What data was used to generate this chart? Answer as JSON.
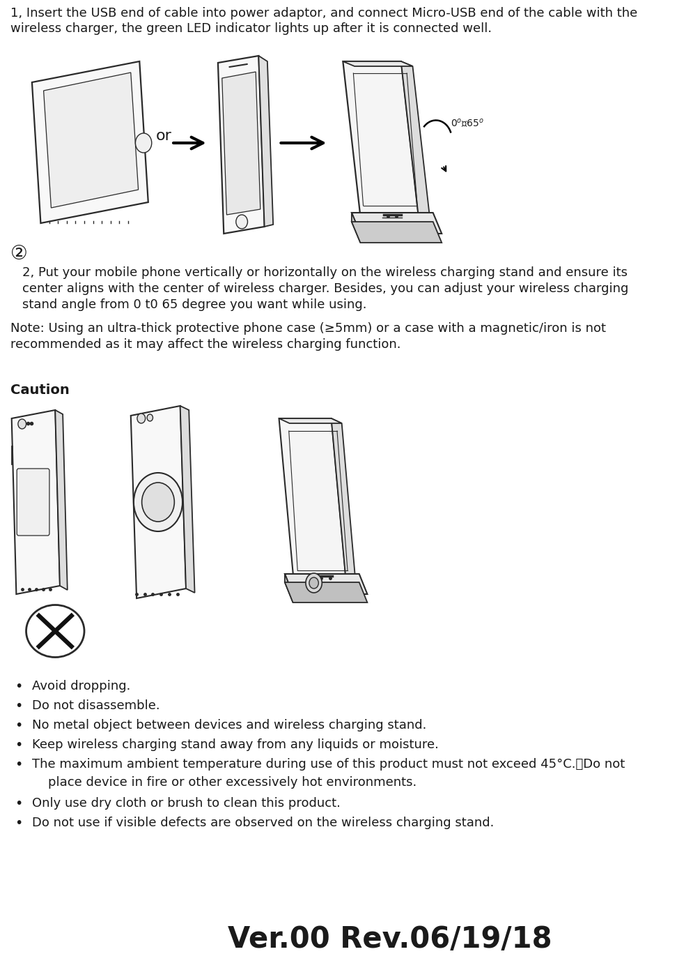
{
  "bg_color": "#ffffff",
  "text_color": "#1a1a1a",
  "title_version": "Ver.00 Rev.06/19/18",
  "para1_line1": "1, Insert the USB end of cable into power adaptor, and connect Micro-USB end of the cable with the",
  "para1_line2": "wireless charger, the green LED indicator lights up after it is connected well.",
  "circled2": "②",
  "para2_indent": "    ",
  "para2_line1": "2, Put your mobile phone vertically or horizontally on the wireless charging stand and ensure its",
  "para2_line2": "center aligns with the center of wireless charger. Besides, you can adjust your wireless charging",
  "para2_line3": "stand angle from 0 t0 65 degree you want while using.",
  "note_line1": "Note: Using an ultra-thick protective phone case (≥5mm) or a case with a magnetic/iron is not",
  "note_line2": "recommended as it may affect the wireless charging function.",
  "caution_header": "Caution",
  "bullet_line1a": "The maximum ambient temperature during use of this product must not exceed 45°C.　Do not",
  "bullet_line1b": "    place device in fire or other excessively hot environments.",
  "bullets": [
    "Avoid dropping.",
    "Do not disassemble.",
    "No metal object between devices and wireless charging stand.",
    "Keep wireless charging stand away from any liquids or moisture.",
    "The maximum ambient temperature during use of this product must not exceed 45°C.　Do not",
    "Only use dry cloth or brush to clean this product.",
    "Do not use if visible defects are observed on the wireless charging stand."
  ],
  "bullet5_line2": "    place device in fire or other excessively hot environments.",
  "font_size_body": 13,
  "font_size_version": 30,
  "font_size_caution": 14,
  "font_size_circle2": 20,
  "lc": "#2a2a2a",
  "lw": 1.3
}
